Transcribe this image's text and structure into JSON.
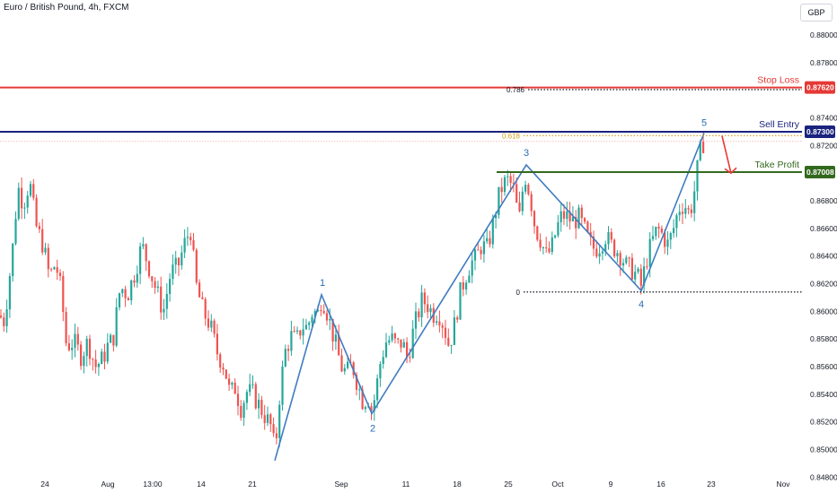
{
  "header": {
    "title": "Euro / British Pound, 4h, FXCM",
    "currency": "GBP"
  },
  "colors": {
    "up": "#26a69a",
    "down": "#ef5350",
    "stop_loss": "#e53935",
    "sell_entry": "#1a237e",
    "take_profit": "#33691e",
    "wave": "#3f7cc0",
    "fib_618": "#d4a017",
    "arrow": "#e53935"
  },
  "chart_data": {
    "type": "candlestick",
    "symbol": "Euro / British Pound",
    "interval": "4h",
    "source": "FXCM",
    "currency": "GBP",
    "ylim": [
      0.8475,
      0.8815
    ],
    "y_ticks": [
      {
        "value": 0.88,
        "label": "0.88000"
      },
      {
        "value": 0.878,
        "label": "0.87800"
      },
      {
        "value": 0.874,
        "label": "0.87400"
      },
      {
        "value": 0.872,
        "label": "0.87200"
      },
      {
        "value": 0.868,
        "label": "0.86800"
      },
      {
        "value": 0.866,
        "label": "0.86600"
      },
      {
        "value": 0.864,
        "label": "0.86400"
      },
      {
        "value": 0.862,
        "label": "0.86200"
      },
      {
        "value": 0.86,
        "label": "0.86000"
      },
      {
        "value": 0.858,
        "label": "0.85800"
      },
      {
        "value": 0.856,
        "label": "0.85600"
      },
      {
        "value": 0.854,
        "label": "0.85400"
      },
      {
        "value": 0.852,
        "label": "0.85200"
      },
      {
        "value": 0.85,
        "label": "0.85000"
      },
      {
        "value": 0.848,
        "label": "0.84800"
      }
    ],
    "x_ticks": [
      "24",
      "Aug",
      "13:00",
      "14",
      "21",
      "Sep",
      "11",
      "18",
      "25",
      "Oct",
      "9",
      "16",
      "23",
      "Nov"
    ],
    "levels": [
      {
        "name": "Stop Loss",
        "value": 0.8762,
        "label": "0.87620"
      },
      {
        "name": "Sell Entry",
        "value": 0.873,
        "label": "0.87300"
      },
      {
        "name": "Take Profit",
        "value": 0.87008,
        "label": "0.87008"
      }
    ],
    "fib_levels": [
      {
        "label": "0.786",
        "value": 0.87605
      },
      {
        "label": "0.618",
        "value": 0.87272
      },
      {
        "label": "0",
        "value": 0.8614
      }
    ],
    "waves": [
      {
        "label": "1",
        "value": 0.8612
      },
      {
        "label": "2",
        "value": 0.8526
      },
      {
        "label": "3",
        "value": 0.8706
      },
      {
        "label": "4",
        "value": 0.8615
      },
      {
        "label": "5",
        "value": 0.8729
      }
    ],
    "wave_start": 0.8492,
    "current_price": 0.8723,
    "anchors": [
      [
        0,
        0.8597
      ],
      [
        4,
        0.8592
      ],
      [
        8,
        0.861
      ],
      [
        14,
        0.8645
      ],
      [
        20,
        0.869
      ],
      [
        26,
        0.8678
      ],
      [
        33,
        0.8694
      ],
      [
        40,
        0.8662
      ],
      [
        48,
        0.8648
      ],
      [
        55,
        0.8625
      ],
      [
        62,
        0.8635
      ],
      [
        68,
        0.8615
      ],
      [
        74,
        0.8575
      ],
      [
        82,
        0.8578
      ],
      [
        90,
        0.8568
      ],
      [
        98,
        0.8578
      ],
      [
        106,
        0.856
      ],
      [
        114,
        0.8565
      ],
      [
        120,
        0.8575
      ],
      [
        126,
        0.858
      ],
      [
        134,
        0.8618
      ],
      [
        142,
        0.8612
      ],
      [
        150,
        0.8628
      ],
      [
        158,
        0.8648
      ],
      [
        166,
        0.8632
      ],
      [
        174,
        0.8615
      ],
      [
        182,
        0.86
      ],
      [
        190,
        0.8628
      ],
      [
        198,
        0.8632
      ],
      [
        206,
        0.865
      ],
      [
        212,
        0.866
      ],
      [
        218,
        0.862
      ],
      [
        226,
        0.86
      ],
      [
        234,
        0.859
      ],
      [
        242,
        0.857
      ],
      [
        250,
        0.856
      ],
      [
        256,
        0.854
      ],
      [
        262,
        0.8545
      ],
      [
        268,
        0.853
      ],
      [
        275,
        0.8542
      ],
      [
        282,
        0.854
      ],
      [
        290,
        0.853
      ],
      [
        297,
        0.8522
      ],
      [
        303,
        0.8515
      ],
      [
        306,
        0.8495
      ],
      [
        312,
        0.8545
      ],
      [
        318,
        0.8572
      ],
      [
        324,
        0.8582
      ],
      [
        330,
        0.8578
      ],
      [
        336,
        0.859
      ],
      [
        342,
        0.8588
      ],
      [
        348,
        0.86
      ],
      [
        354,
        0.8598
      ],
      [
        358,
        0.861
      ],
      [
        362,
        0.8605
      ],
      [
        368,
        0.859
      ],
      [
        374,
        0.8575
      ],
      [
        380,
        0.856
      ],
      [
        386,
        0.8555
      ],
      [
        392,
        0.8562
      ],
      [
        398,
        0.8548
      ],
      [
        404,
        0.8535
      ],
      [
        410,
        0.8538
      ],
      [
        414,
        0.8528
      ],
      [
        418,
        0.854
      ],
      [
        424,
        0.8565
      ],
      [
        430,
        0.8578
      ],
      [
        436,
        0.858
      ],
      [
        442,
        0.8575
      ],
      [
        448,
        0.8578
      ],
      [
        454,
        0.8565
      ],
      [
        458,
        0.858
      ],
      [
        464,
        0.8595
      ],
      [
        470,
        0.8608
      ],
      [
        476,
        0.8605
      ],
      [
        482,
        0.8598
      ],
      [
        488,
        0.86
      ],
      [
        494,
        0.859
      ],
      [
        500,
        0.8575
      ],
      [
        506,
        0.859
      ],
      [
        512,
        0.8612
      ],
      [
        518,
        0.8625
      ],
      [
        524,
        0.8635
      ],
      [
        530,
        0.8638
      ],
      [
        536,
        0.8648
      ],
      [
        542,
        0.8645
      ],
      [
        548,
        0.866
      ],
      [
        554,
        0.868
      ],
      [
        560,
        0.8692
      ],
      [
        566,
        0.8695
      ],
      [
        572,
        0.8688
      ],
      [
        578,
        0.8665
      ],
      [
        584,
        0.87
      ],
      [
        590,
        0.8685
      ],
      [
        596,
        0.866
      ],
      [
        602,
        0.8652
      ],
      [
        608,
        0.864
      ],
      [
        614,
        0.8645
      ],
      [
        620,
        0.866
      ],
      [
        626,
        0.867
      ],
      [
        632,
        0.8668
      ],
      [
        638,
        0.8665
      ],
      [
        644,
        0.8668
      ],
      [
        650,
        0.866
      ],
      [
        656,
        0.865
      ],
      [
        662,
        0.8645
      ],
      [
        668,
        0.8648
      ],
      [
        674,
        0.8655
      ],
      [
        680,
        0.8648
      ],
      [
        686,
        0.8645
      ],
      [
        692,
        0.864
      ],
      [
        698,
        0.8632
      ],
      [
        704,
        0.863
      ],
      [
        710,
        0.8625
      ],
      [
        714,
        0.8618
      ],
      [
        720,
        0.8638
      ],
      [
        726,
        0.865
      ],
      [
        732,
        0.866
      ],
      [
        738,
        0.8655
      ],
      [
        744,
        0.8648
      ],
      [
        750,
        0.866
      ],
      [
        756,
        0.8675
      ],
      [
        762,
        0.8678
      ],
      [
        768,
        0.867
      ],
      [
        774,
        0.869
      ],
      [
        778,
        0.871
      ],
      [
        782,
        0.8722
      ],
      [
        786,
        0.8723
      ]
    ]
  }
}
